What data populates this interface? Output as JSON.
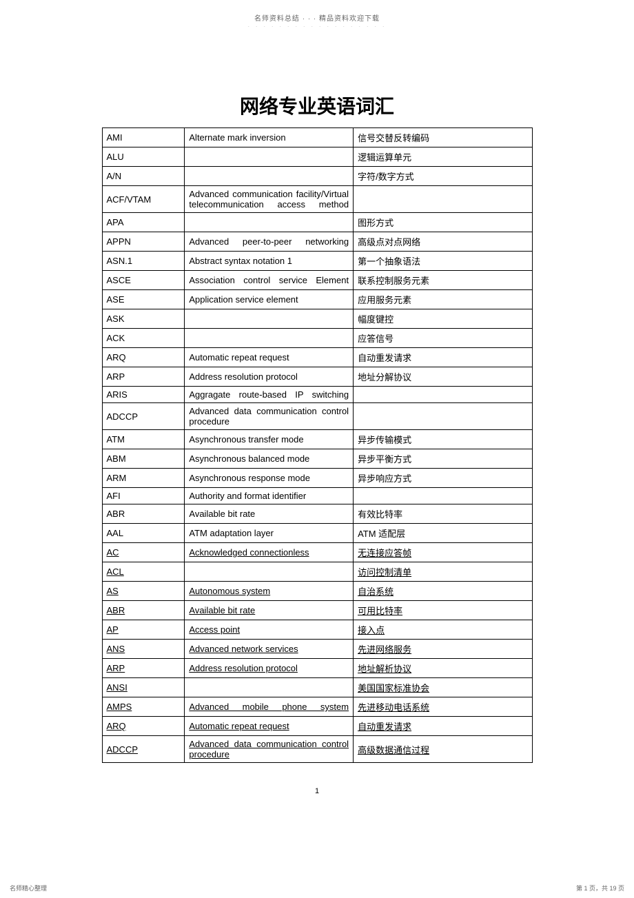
{
  "header": {
    "line1": "名师资料总结 · · · 精品资料欢迎下载",
    "dots": "· · · · · · · · · · · · · · · · · ·"
  },
  "title": "网络专业英语词汇",
  "table": {
    "rows": [
      {
        "abbr": "AMI",
        "full": "Alternate mark inversion",
        "cn": "信号交替反转编码"
      },
      {
        "abbr": "ALU",
        "full": "",
        "cn": "逻辑运算单元"
      },
      {
        "abbr": "A/N",
        "full": "",
        "cn": "字符/数字方式"
      },
      {
        "abbr": "ACF/VTAM",
        "full": "Advanced communication facility/Virtual telecommunication access method",
        "cn": "",
        "justify": true
      },
      {
        "abbr": "APA",
        "full": "",
        "cn": "图形方式"
      },
      {
        "abbr": "APPN",
        "full": "Advanced peer-to-peer networking",
        "cn": "高级点对点网络",
        "justify": true
      },
      {
        "abbr": "ASN.1",
        "full": "Abstract syntax notation 1",
        "cn": "第一个抽象语法"
      },
      {
        "abbr": "ASCE",
        "full": "Association control service Element",
        "cn": "联系控制服务元素",
        "justify": true
      },
      {
        "abbr": "ASE",
        "full": "Application service element",
        "cn": "应用服务元素"
      },
      {
        "abbr": "ASK",
        "full": "",
        "cn": "幅度键控"
      },
      {
        "abbr": "ACK",
        "full": "",
        "cn": "应答信号"
      },
      {
        "abbr": "ARQ",
        "full": "Automatic repeat request",
        "cn": "自动重发请求"
      },
      {
        "abbr": "ARP",
        "full": "Address resolution protocol",
        "cn": "地址分解协议"
      },
      {
        "abbr": "ARIS",
        "full": "Aggragate route-based IP switching",
        "cn": "",
        "justify": true
      },
      {
        "abbr": "ADCCP",
        "full": "Advanced data communication control procedure",
        "cn": ""
      },
      {
        "abbr": "ATM",
        "full": "Asynchronous transfer mode",
        "cn": "异步传输模式"
      },
      {
        "abbr": "ABM",
        "full": "Asynchronous balanced mode",
        "cn": "异步平衡方式"
      },
      {
        "abbr": "ARM",
        "full": "Asynchronous response mode",
        "cn": "异步响应方式"
      },
      {
        "abbr": "AFI",
        "full": "Authority and format identifier",
        "cn": ""
      },
      {
        "abbr": "ABR",
        "full": "Available bit rate",
        "cn": "有效比特率"
      },
      {
        "abbr": "AAL",
        "full": "ATM adaptation layer",
        "cn": "ATM 适配层"
      },
      {
        "abbr": "AC",
        "full": "Acknowledged connectionless",
        "cn": "无连接应答帧",
        "underline": true
      },
      {
        "abbr": "ACL",
        "full": "",
        "cn": "访问控制清单",
        "underline": true
      },
      {
        "abbr": "AS",
        "full": "Autonomous system",
        "cn": "自治系统",
        "underline": true
      },
      {
        "abbr": "ABR",
        "full": "Available bit rate",
        "cn": "可用比特率",
        "underline": true
      },
      {
        "abbr": "AP",
        "full": "Access point",
        "cn": "接入点",
        "underline": true
      },
      {
        "abbr": "ANS",
        "full": "Advanced network services",
        "cn": "先进网络服务",
        "underline": true
      },
      {
        "abbr": "ARP",
        "full": "Address resolution protocol",
        "cn": "地址解析协议",
        "underline": true
      },
      {
        "abbr": "ANSI",
        "full": "",
        "cn": "美国国家标准协会",
        "underline": true
      },
      {
        "abbr": "AMPS",
        "full": "Advanced mobile phone system",
        "cn": "先进移动电话系统",
        "underline": true,
        "justify": true
      },
      {
        "abbr": "ARQ",
        "full": "Automatic repeat request",
        "cn": "自动重发请求",
        "underline": true
      },
      {
        "abbr": "ADCCP",
        "full": "Advanced data communication control procedure",
        "cn": "高级数据通信过程",
        "underline": true
      }
    ]
  },
  "pageNumber": "1",
  "footer": {
    "left": "名师精心整理",
    "right": "第 1 页，共 19 页"
  }
}
